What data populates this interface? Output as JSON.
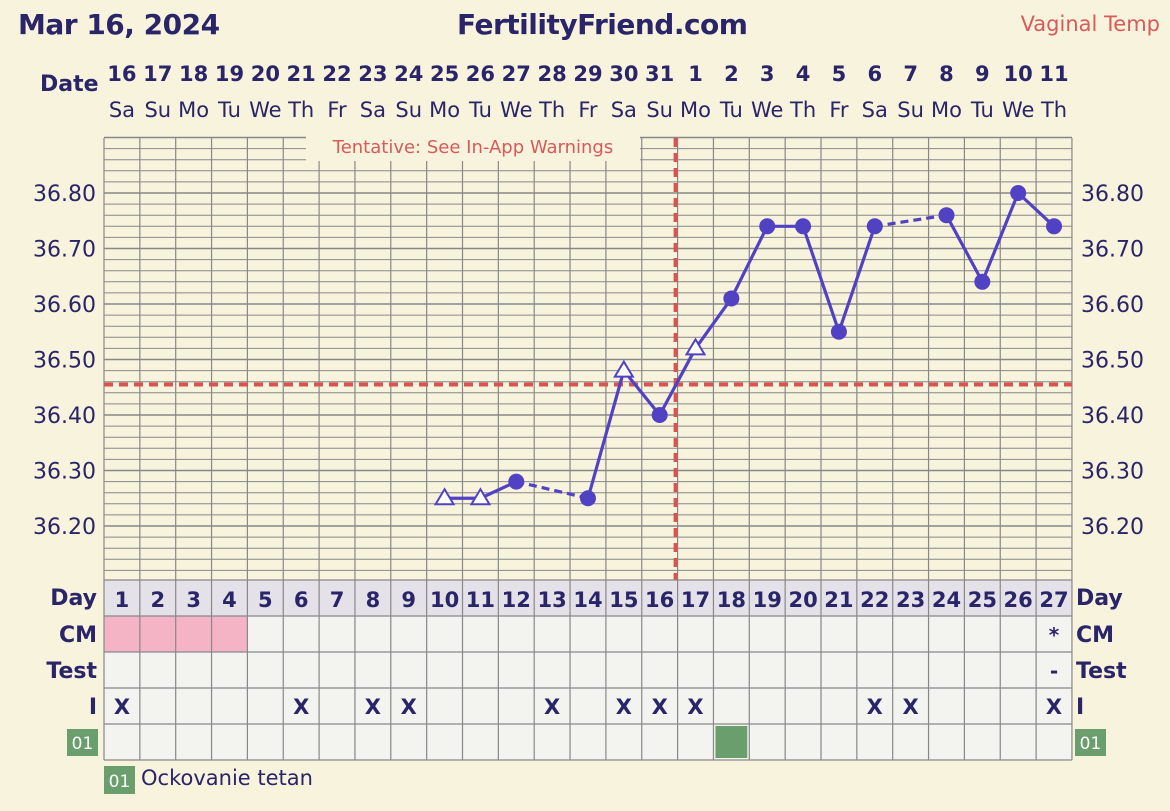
{
  "header": {
    "date": "Mar 16, 2024",
    "site": "FertilityFriend.com",
    "mode": "Vaginal Temp"
  },
  "labels": {
    "date_row": "Date",
    "day_row": "Day",
    "cm_row": "CM",
    "test_row": "Test",
    "i_row": "I",
    "tentative": "Tentative: See In-App Warnings"
  },
  "colors": {
    "line": "#5142c4",
    "coverline": "#d9534f",
    "pink": "#f4b4c6",
    "green": "#6a9e6c",
    "grid": "#888888"
  },
  "chart_data": {
    "type": "line",
    "title": "",
    "xlabel": "",
    "ylabel": "",
    "ylim": [
      36.2,
      36.8
    ],
    "yticks": [
      "36.20",
      "36.30",
      "36.40",
      "36.50",
      "36.60",
      "36.70",
      "36.80"
    ],
    "dates": [
      "16",
      "17",
      "18",
      "19",
      "20",
      "21",
      "22",
      "23",
      "24",
      "25",
      "26",
      "27",
      "28",
      "29",
      "30",
      "31",
      "1",
      "2",
      "3",
      "4",
      "5",
      "6",
      "7",
      "8",
      "9",
      "10",
      "11"
    ],
    "weekdays": [
      "Sa",
      "Su",
      "Mo",
      "Tu",
      "We",
      "Th",
      "Fr",
      "Sa",
      "Su",
      "Mo",
      "Tu",
      "We",
      "Th",
      "Fr",
      "Sa",
      "Su",
      "Mo",
      "Tu",
      "We",
      "Th",
      "Fr",
      "Sa",
      "Su",
      "Mo",
      "Tu",
      "We",
      "Th"
    ],
    "cycle_days": [
      "1",
      "2",
      "3",
      "4",
      "5",
      "6",
      "7",
      "8",
      "9",
      "10",
      "11",
      "12",
      "13",
      "14",
      "15",
      "16",
      "17",
      "18",
      "19",
      "20",
      "21",
      "22",
      "23",
      "24",
      "25",
      "26",
      "27"
    ],
    "temps": [
      null,
      null,
      null,
      null,
      null,
      null,
      null,
      null,
      null,
      36.25,
      36.25,
      36.28,
      null,
      36.25,
      36.48,
      36.4,
      36.52,
      36.61,
      36.74,
      36.74,
      36.55,
      36.74,
      null,
      36.76,
      36.64,
      36.8,
      36.74
    ],
    "markers": [
      null,
      null,
      null,
      null,
      null,
      null,
      null,
      null,
      null,
      "open",
      "open",
      "filled",
      null,
      "filled",
      "open",
      "filled",
      "open",
      "filled",
      "filled",
      "filled",
      "filled",
      "filled",
      null,
      "filled",
      "filled",
      "filled",
      "filled"
    ],
    "coverline": 36.455,
    "ovulation_day": 16,
    "cm": [
      "pink",
      "pink",
      "pink",
      "pink",
      "",
      "",
      "",
      "",
      "",
      "",
      "",
      "",
      "",
      "",
      "",
      "",
      "",
      "",
      "",
      "",
      "",
      "",
      "",
      "",
      "",
      "",
      "*"
    ],
    "test": [
      "",
      "",
      "",
      "",
      "",
      "",
      "",
      "",
      "",
      "",
      "",
      "",
      "",
      "",
      "",
      "",
      "",
      "",
      "",
      "",
      "",
      "",
      "",
      "",
      "",
      "",
      "-"
    ],
    "intercourse": [
      "X",
      "",
      "",
      "",
      "",
      "X",
      "",
      "X",
      "X",
      "",
      "",
      "",
      "X",
      "",
      "X",
      "X",
      "X",
      "",
      "",
      "",
      "",
      "X",
      "X",
      "",
      "",
      "",
      "X"
    ],
    "custom_code": "01",
    "custom_days": [
      18
    ],
    "legend": [
      {
        "code": "01",
        "label": "Ockovanie tetan"
      }
    ]
  }
}
